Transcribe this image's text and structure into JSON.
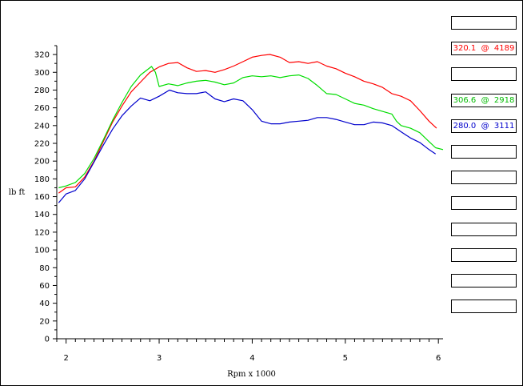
{
  "chart_data": {
    "type": "line",
    "xlabel": "Rpm x 1000",
    "ylabel": "lb ft",
    "xlim": [
      1.9,
      6.05
    ],
    "ylim": [
      0,
      330
    ],
    "x_major_ticks": [
      2,
      3,
      4,
      5,
      6
    ],
    "x_minor_step": 0.1,
    "y_major_ticks": [
      0,
      20,
      40,
      60,
      80,
      100,
      120,
      140,
      160,
      180,
      200,
      220,
      240,
      260,
      280,
      300,
      320
    ],
    "y_minor_step": 10,
    "grid": false,
    "legend": "right",
    "series": [
      {
        "color": "#ff0000",
        "peak_label": "320.1  @  4189",
        "points": [
          [
            1.92,
            164
          ],
          [
            2.0,
            170
          ],
          [
            2.1,
            171
          ],
          [
            2.2,
            182
          ],
          [
            2.3,
            200
          ],
          [
            2.4,
            222
          ],
          [
            2.5,
            244
          ],
          [
            2.6,
            262
          ],
          [
            2.7,
            278
          ],
          [
            2.8,
            289
          ],
          [
            2.9,
            300
          ],
          [
            3.0,
            306
          ],
          [
            3.1,
            310
          ],
          [
            3.2,
            311
          ],
          [
            3.3,
            305
          ],
          [
            3.4,
            301
          ],
          [
            3.5,
            302
          ],
          [
            3.6,
            300
          ],
          [
            3.7,
            303
          ],
          [
            3.8,
            307
          ],
          [
            3.9,
            312
          ],
          [
            4.0,
            317
          ],
          [
            4.1,
            319
          ],
          [
            4.19,
            320.1
          ],
          [
            4.3,
            317
          ],
          [
            4.4,
            311
          ],
          [
            4.5,
            312
          ],
          [
            4.6,
            310
          ],
          [
            4.7,
            312
          ],
          [
            4.8,
            307
          ],
          [
            4.9,
            304
          ],
          [
            5.0,
            299
          ],
          [
            5.1,
            295
          ],
          [
            5.2,
            290
          ],
          [
            5.3,
            287
          ],
          [
            5.4,
            283
          ],
          [
            5.5,
            276
          ],
          [
            5.6,
            273
          ],
          [
            5.7,
            268
          ],
          [
            5.8,
            257
          ],
          [
            5.9,
            245
          ],
          [
            5.98,
            237
          ]
        ]
      },
      {
        "color": "#00dd00",
        "peak_label": "306.6  @  2918",
        "points": [
          [
            1.92,
            170
          ],
          [
            2.0,
            172
          ],
          [
            2.1,
            176
          ],
          [
            2.2,
            186
          ],
          [
            2.3,
            203
          ],
          [
            2.4,
            224
          ],
          [
            2.5,
            246
          ],
          [
            2.6,
            266
          ],
          [
            2.7,
            284
          ],
          [
            2.8,
            297
          ],
          [
            2.918,
            306.6
          ],
          [
            2.96,
            300
          ],
          [
            3.0,
            284
          ],
          [
            3.1,
            287
          ],
          [
            3.2,
            285
          ],
          [
            3.3,
            288
          ],
          [
            3.4,
            290
          ],
          [
            3.5,
            291
          ],
          [
            3.6,
            289
          ],
          [
            3.7,
            286
          ],
          [
            3.8,
            288
          ],
          [
            3.9,
            294
          ],
          [
            4.0,
            296
          ],
          [
            4.1,
            295
          ],
          [
            4.2,
            296
          ],
          [
            4.3,
            294
          ],
          [
            4.4,
            296
          ],
          [
            4.5,
            297
          ],
          [
            4.6,
            293
          ],
          [
            4.7,
            285
          ],
          [
            4.8,
            276
          ],
          [
            4.9,
            275
          ],
          [
            5.0,
            270
          ],
          [
            5.1,
            265
          ],
          [
            5.2,
            263
          ],
          [
            5.3,
            259
          ],
          [
            5.4,
            256
          ],
          [
            5.5,
            253
          ],
          [
            5.55,
            245
          ],
          [
            5.6,
            240
          ],
          [
            5.7,
            237
          ],
          [
            5.8,
            232
          ],
          [
            5.9,
            222
          ],
          [
            5.97,
            215
          ],
          [
            6.05,
            213
          ]
        ]
      },
      {
        "color": "#0000cc",
        "peak_label": "280.0  @  3111",
        "points": [
          [
            1.92,
            153
          ],
          [
            2.0,
            163
          ],
          [
            2.1,
            167
          ],
          [
            2.2,
            180
          ],
          [
            2.3,
            199
          ],
          [
            2.4,
            218
          ],
          [
            2.5,
            236
          ],
          [
            2.6,
            251
          ],
          [
            2.7,
            262
          ],
          [
            2.8,
            271
          ],
          [
            2.9,
            268
          ],
          [
            3.0,
            273
          ],
          [
            3.111,
            280
          ],
          [
            3.2,
            277
          ],
          [
            3.3,
            276
          ],
          [
            3.4,
            276
          ],
          [
            3.5,
            278
          ],
          [
            3.55,
            274
          ],
          [
            3.6,
            270
          ],
          [
            3.7,
            267
          ],
          [
            3.8,
            270
          ],
          [
            3.9,
            268
          ],
          [
            4.0,
            258
          ],
          [
            4.1,
            245
          ],
          [
            4.2,
            242
          ],
          [
            4.3,
            242
          ],
          [
            4.4,
            244
          ],
          [
            4.5,
            245
          ],
          [
            4.6,
            246
          ],
          [
            4.7,
            249
          ],
          [
            4.8,
            249
          ],
          [
            4.9,
            247
          ],
          [
            5.0,
            244
          ],
          [
            5.1,
            241
          ],
          [
            5.2,
            241
          ],
          [
            5.3,
            244
          ],
          [
            5.4,
            243
          ],
          [
            5.5,
            240
          ],
          [
            5.6,
            233
          ],
          [
            5.7,
            226
          ],
          [
            5.8,
            221
          ],
          [
            5.9,
            213
          ],
          [
            5.97,
            208
          ]
        ]
      }
    ]
  },
  "legend_slots": [
    {
      "text": "",
      "color": "#000000"
    },
    {
      "text": "320.1  @  4189",
      "color": "#ff0000"
    },
    {
      "text": "",
      "color": "#000000"
    },
    {
      "text": "306.6  @  2918",
      "color": "#00bb00"
    },
    {
      "text": "280.0  @  3111",
      "color": "#0000cc"
    },
    {
      "text": "",
      "color": "#000000"
    },
    {
      "text": "",
      "color": "#000000"
    },
    {
      "text": "",
      "color": "#000000"
    },
    {
      "text": "",
      "color": "#000000"
    },
    {
      "text": "",
      "color": "#000000"
    },
    {
      "text": "",
      "color": "#000000"
    },
    {
      "text": "",
      "color": "#000000"
    }
  ]
}
